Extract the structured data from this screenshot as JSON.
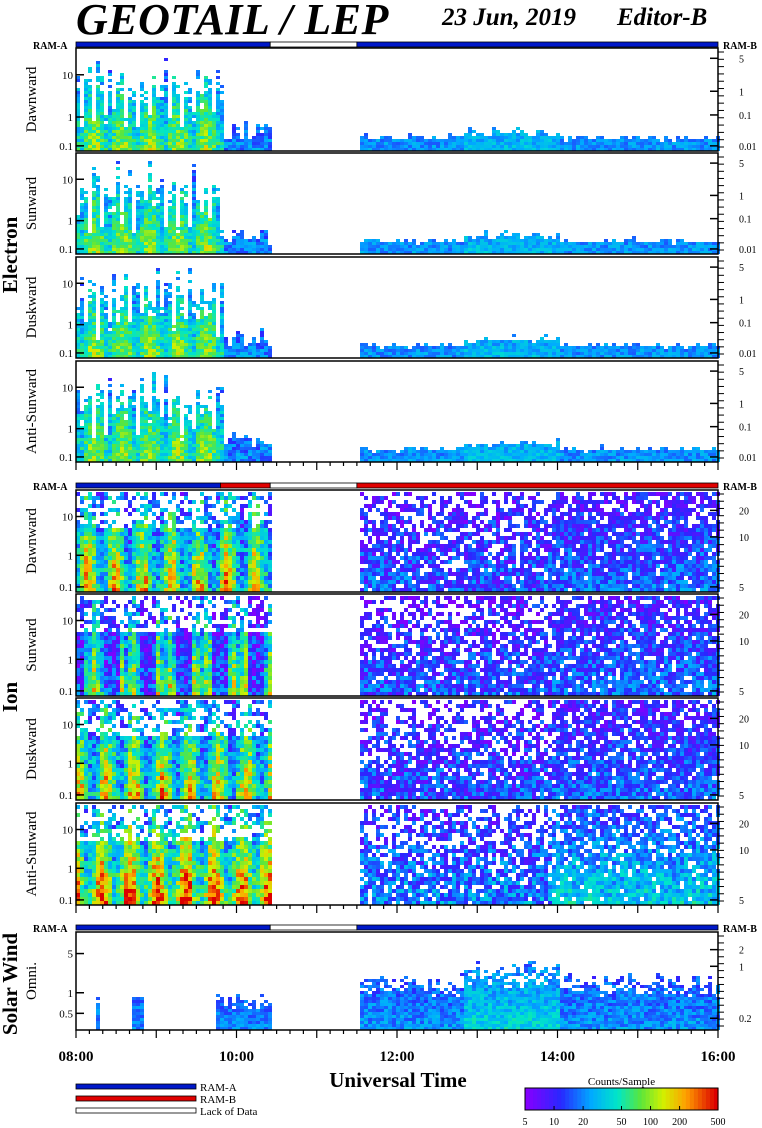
{
  "header": {
    "instrument": "GEOTAIL / LEP",
    "date": "23 Jun, 2019",
    "editor": "Editor-B"
  },
  "ram_labels": {
    "left": "RAM-A",
    "right": "RAM-B"
  },
  "colors": {
    "ram_a": "#0018c8",
    "ram_b": "#e00000",
    "lack_of_data": "#ffffff"
  },
  "icons": [
    "none"
  ],
  "chart_data": {
    "type": "heatmap",
    "xlabel": "Universal Time",
    "x_tick_labels": [
      "08:00",
      "10:00",
      "12:00",
      "14:00",
      "16:00"
    ],
    "x_range_hours": [
      8,
      16
    ],
    "data_gap_hours": [
      10.42,
      11.5
    ],
    "groups": [
      {
        "name": "Electron",
        "left_ticks": [
          "10",
          "1",
          "0.1"
        ],
        "right_ticks": [
          "5",
          "1",
          "0.1",
          "0.01"
        ],
        "ram_mode": [
          {
            "from": 8,
            "to": 10.42,
            "mode": "RAM-A"
          },
          {
            "from": 10.42,
            "to": 11.5,
            "mode": "Lack of Data"
          },
          {
            "from": 11.5,
            "to": 16,
            "mode": "RAM-A"
          }
        ],
        "panels": [
          "Dawnward",
          "Sunward",
          "Duskward",
          "Anti-Sunward"
        ]
      },
      {
        "name": "Ion",
        "left_ticks": [
          "10",
          "1",
          "0.1"
        ],
        "right_ticks": [
          "20",
          "10",
          "5"
        ],
        "ram_mode": [
          {
            "from": 8,
            "to": 9.8,
            "mode": "RAM-A"
          },
          {
            "from": 9.8,
            "to": 10.42,
            "mode": "RAM-B"
          },
          {
            "from": 10.42,
            "to": 11.5,
            "mode": "Lack of Data"
          },
          {
            "from": 11.5,
            "to": 16,
            "mode": "RAM-B"
          }
        ],
        "panels": [
          "Dawnward",
          "Sunward",
          "Duskward",
          "Anti-Sunward"
        ]
      },
      {
        "name": "Solar Wind",
        "left_ticks": [
          "5",
          "1",
          "0.5"
        ],
        "right_ticks": [
          "2",
          "1",
          "0.2"
        ],
        "ram_mode": [
          {
            "from": 8,
            "to": 10.42,
            "mode": "RAM-A"
          },
          {
            "from": 10.42,
            "to": 11.5,
            "mode": "Lack of Data"
          },
          {
            "from": 11.5,
            "to": 16,
            "mode": "RAM-A"
          }
        ],
        "panels": [
          "Omni."
        ]
      }
    ],
    "legend": {
      "items": [
        "RAM-A",
        "RAM-B",
        "Lack of Data"
      ],
      "colorbar_title": "Counts/Sample",
      "colorbar_ticks": [
        "5",
        "10",
        "20",
        "50",
        "100",
        "200",
        "500"
      ],
      "colorbar_scale": "log"
    }
  }
}
